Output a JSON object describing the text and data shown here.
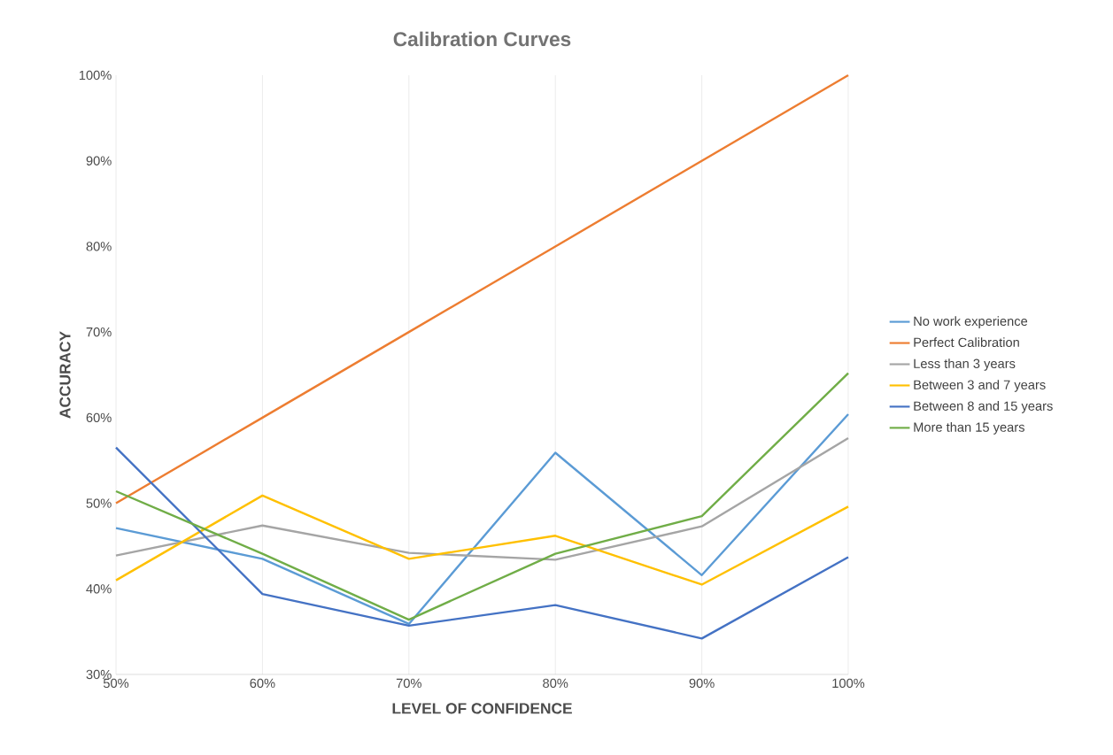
{
  "chart_data": {
    "type": "line",
    "title": "Calibration Curves",
    "xlabel": "LEVEL OF CONFIDENCE",
    "ylabel": "ACCURACY",
    "x": [
      50,
      60,
      70,
      80,
      90,
      100
    ],
    "xlim": [
      50,
      100
    ],
    "xticks": [
      {
        "value": 50,
        "label": "50%"
      },
      {
        "value": 60,
        "label": "60%"
      },
      {
        "value": 70,
        "label": "70%"
      },
      {
        "value": 80,
        "label": "80%"
      },
      {
        "value": 90,
        "label": "90%"
      },
      {
        "value": 100,
        "label": "100%"
      }
    ],
    "ylim": [
      30,
      100
    ],
    "yticks": [
      {
        "value": 30,
        "label": "30%"
      },
      {
        "value": 40,
        "label": "40%"
      },
      {
        "value": 50,
        "label": "50%"
      },
      {
        "value": 60,
        "label": "60%"
      },
      {
        "value": 70,
        "label": "70%"
      },
      {
        "value": 80,
        "label": "80%"
      },
      {
        "value": 90,
        "label": "90%"
      },
      {
        "value": 100,
        "label": "100%"
      }
    ],
    "grid": "x",
    "legend": "right",
    "marker": "none",
    "line_style": "solid",
    "series": [
      {
        "name": "No work experience",
        "color": "#5b9bd5",
        "values": [
          47.1,
          43.5,
          35.9,
          55.9,
          41.6,
          60.4
        ]
      },
      {
        "name": "Perfect Calibration",
        "color": "#ed7d31",
        "values": [
          50,
          60,
          70,
          80,
          90,
          100
        ]
      },
      {
        "name": "Less than 3 years",
        "color": "#a5a5a5",
        "values": [
          43.9,
          47.4,
          44.2,
          43.4,
          47.3,
          57.6
        ]
      },
      {
        "name": "Between 3 and 7 years",
        "color": "#ffc000",
        "values": [
          41.0,
          50.9,
          43.5,
          46.2,
          40.5,
          49.6
        ]
      },
      {
        "name": "Between 8 and 15 years",
        "color": "#4472c4",
        "values": [
          56.5,
          39.4,
          35.7,
          38.1,
          34.2,
          43.7
        ]
      },
      {
        "name": "More than 15 years",
        "color": "#70ad47",
        "values": [
          51.4,
          44.1,
          36.4,
          44.1,
          48.5,
          65.2
        ]
      }
    ]
  }
}
